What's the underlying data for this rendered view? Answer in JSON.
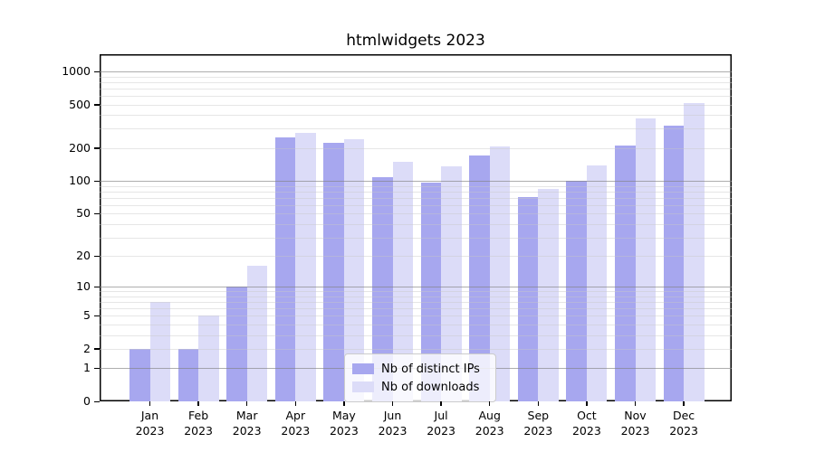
{
  "figure": {
    "title": "htmlwidgets 2023"
  },
  "legend": {
    "items": [
      {
        "label": "Nb of distinct IPs",
        "color": "#a7a7ef"
      },
      {
        "label": "Nb of downloads",
        "color": "#dcdcf8"
      }
    ]
  },
  "chart_data": {
    "type": "bar",
    "title": "htmlwidgets 2023",
    "x_categories": [
      "Jan 2023",
      "Feb 2023",
      "Mar 2023",
      "Apr 2023",
      "May 2023",
      "Jun 2023",
      "Jul 2023",
      "Aug 2023",
      "Sep 2023",
      "Oct 2023",
      "Nov 2023",
      "Dec 2023"
    ],
    "series": [
      {
        "name": "Nb of distinct IPs",
        "color": "#a7a7ef",
        "values": [
          2,
          2,
          10,
          250,
          222,
          109,
          97,
          171,
          71,
          100,
          211,
          320
        ]
      },
      {
        "name": "Nb of downloads",
        "color": "#dcdcf8",
        "values": [
          7,
          5,
          16,
          273,
          240,
          150,
          137,
          207,
          85,
          140,
          374,
          515
        ]
      }
    ],
    "y_scale": "log1p",
    "ylim": [
      0,
      1430
    ],
    "y_ticks": [
      0,
      1,
      2,
      5,
      10,
      20,
      50,
      100,
      200,
      500,
      1000
    ],
    "y_major_gridlines": [
      1,
      10,
      100,
      1000
    ],
    "y_minor_gridlines": [
      2,
      3,
      4,
      5,
      6,
      7,
      8,
      9,
      20,
      30,
      40,
      50,
      60,
      70,
      80,
      90,
      200,
      300,
      400,
      500,
      600,
      700,
      800,
      900
    ],
    "grid": "horizontal",
    "legend_position": "lower center"
  }
}
